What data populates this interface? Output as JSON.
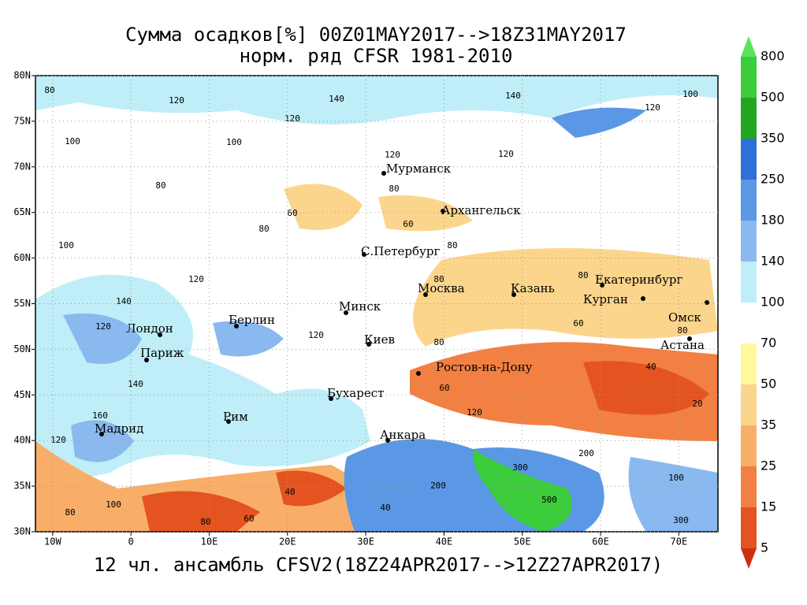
{
  "map": {
    "title": "Сумма осадков[%] 00Z01MAY2017-->18Z31MAY2017",
    "subtitle": "норм. ряд CFSR 1981-2010",
    "footer": "12 чл. ансамбль CFSV2(18Z24APR2017-->12Z27APR2017)",
    "xlim": [
      -12.2,
      75
    ],
    "ylim": [
      30,
      80
    ],
    "xticks": [
      {
        "value": -10,
        "label": "10W"
      },
      0,
      {
        "value": 10,
        "label": "10E"
      },
      {
        "value": 20,
        "label": "20E"
      },
      {
        "value": 30,
        "label": "30E"
      },
      {
        "value": 40,
        "label": "40E"
      },
      {
        "value": 50,
        "label": "50E"
      },
      {
        "value": 60,
        "label": "60E"
      },
      {
        "value": 70,
        "label": "70E"
      }
    ],
    "yticks": [
      {
        "value": 30,
        "label": "30N"
      },
      {
        "value": 35,
        "label": "35N"
      },
      {
        "value": 40,
        "label": "40N"
      },
      {
        "value": 45,
        "label": "45N"
      },
      {
        "value": 50,
        "label": "50N"
      },
      {
        "value": 55,
        "label": "55N"
      },
      {
        "value": 60,
        "label": "60N"
      },
      {
        "value": 65,
        "label": "65N"
      },
      {
        "value": 70,
        "label": "70N"
      },
      {
        "value": 75,
        "label": "75N"
      },
      {
        "value": 80,
        "label": "80N"
      }
    ],
    "grid": true,
    "cities": [
      "Мурманск",
      "Архангельск",
      "С.Петербург",
      "Москва",
      "Казань",
      "Екатеринбург",
      "Курган",
      "Омск",
      "Астана",
      "Минск",
      "Берлин",
      "Лондон",
      "Париж",
      "Киев",
      "Ростов-на-Дону",
      "Бухарест",
      "Рим",
      "Мадрид",
      "Анкара"
    ],
    "contour_labels": [
      "80",
      "120",
      "140",
      "120",
      "140",
      "100",
      "120",
      "100",
      "100",
      "120",
      "120",
      "80",
      "80",
      "60",
      "80",
      "60",
      "80",
      "100",
      "120",
      "80",
      "80",
      "140",
      "120",
      "120",
      "80",
      "80",
      "40",
      "60",
      "140",
      "160",
      "120",
      "60",
      "120",
      "200",
      "500",
      "300",
      "200",
      "100",
      "20",
      "40",
      "100",
      "300",
      "40",
      "80",
      "80",
      "60"
    ],
    "colorbar": {
      "levels": [
        800,
        500,
        350,
        250,
        180,
        140,
        100,
        70,
        50,
        35,
        25,
        15,
        5
      ],
      "colors": [
        "#5ae45a",
        "#3ccc3c",
        "#22a622",
        "#2f6fd8",
        "#5a98e6",
        "#8ab9f0",
        "#bfeef8",
        "#ffffff",
        "#fff89c",
        "#fcd58c",
        "#f8ae68",
        "#f28042",
        "#e45420",
        "#cc3010"
      ]
    }
  }
}
